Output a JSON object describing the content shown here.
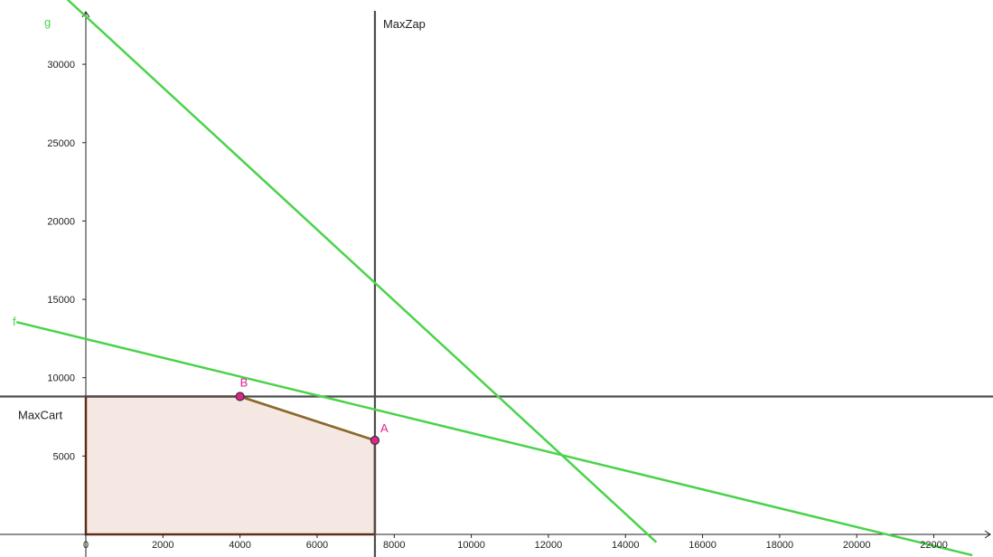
{
  "chart_data": {
    "type": "line",
    "title": "",
    "xlabel": "",
    "ylabel": "",
    "xlim": [
      0,
      23500
    ],
    "ylim": [
      0,
      34500
    ],
    "x_ticks": [
      0,
      2000,
      4000,
      6000,
      8000,
      10000,
      12000,
      14000,
      16000,
      18000,
      20000,
      22000
    ],
    "x_tick_labels": [
      "0",
      "2000",
      "4000",
      "6000",
      "8000",
      "10000",
      "12000",
      "14000",
      "16000",
      "18000",
      "20000",
      "22000"
    ],
    "y_ticks": [
      5000,
      10000,
      15000,
      20000,
      25000,
      30000
    ],
    "y_tick_labels": [
      "5000",
      "10000",
      "15000",
      "20000",
      "25000",
      "30000"
    ],
    "grid": false,
    "lines": [
      {
        "name": "g",
        "color": "#4ad34a",
        "points": [
          [
            -1300,
            36000
          ],
          [
            14800,
            -500
          ]
        ]
      },
      {
        "name": "f",
        "color": "#4ad34a",
        "points": [
          [
            -1800,
            13550
          ],
          [
            23000,
            -1330
          ]
        ]
      }
    ],
    "vertical_lines": [
      {
        "name": "MaxZap",
        "x": 7500,
        "color": "#4d4d4d"
      }
    ],
    "horizontal_lines": [
      {
        "name": "MaxCart",
        "y": 8800,
        "color": "#4d4d4d"
      }
    ],
    "points": [
      {
        "name": "A",
        "x": 7500,
        "y": 6000,
        "color": "#e0238e"
      },
      {
        "name": "B",
        "x": 4000,
        "y": 8800,
        "color": "#e0238e"
      }
    ],
    "feasible_region": {
      "vertices": [
        [
          0,
          0
        ],
        [
          0,
          8800
        ],
        [
          4000,
          8800
        ],
        [
          7500,
          6000
        ],
        [
          7500,
          0
        ]
      ],
      "fill": "#f5e8e2",
      "stroke": "#8b3a1a",
      "edge_color": "#8a6b2a"
    }
  }
}
